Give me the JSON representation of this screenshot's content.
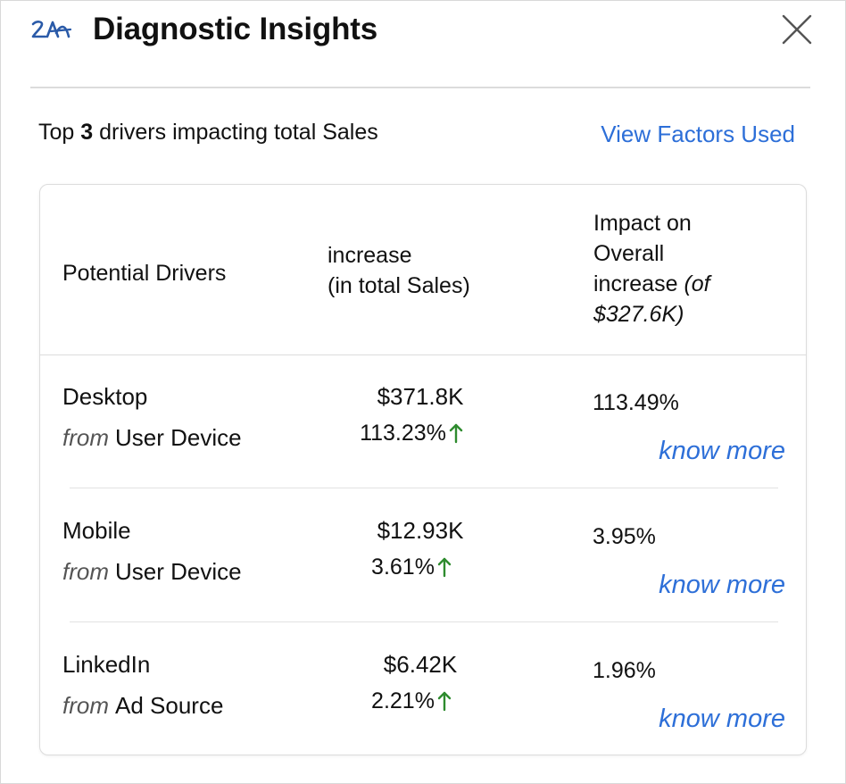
{
  "header": {
    "title": "Diagnostic Insights",
    "logo_icon": "zia-icon",
    "close_icon": "close-icon"
  },
  "summary": {
    "prefix": "Top ",
    "count": "3",
    "suffix": " drivers impacting total Sales",
    "view_factors_label": "View Factors Used"
  },
  "table": {
    "columns": {
      "drivers": "Potential Drivers",
      "increase_line1": "increase",
      "increase_line2": "(in total Sales)",
      "impact_line1": "Impact on",
      "impact_line2": "Overall",
      "impact_line3": "increase",
      "impact_italic1": "(of",
      "impact_italic2": "$327.6K)"
    },
    "rows": [
      {
        "name": "Desktop",
        "from_label": "from",
        "source": "User Device",
        "increase_value": "$371.8K",
        "increase_pct": "113.23%",
        "impact": "113.49%",
        "know_more": "know more"
      },
      {
        "name": "Mobile",
        "from_label": "from",
        "source": "User Device",
        "increase_value": "$12.93K",
        "increase_pct": "3.61%",
        "impact": "3.95%",
        "know_more": "know more"
      },
      {
        "name": "LinkedIn",
        "from_label": "from",
        "source": "Ad Source",
        "increase_value": "$6.42K",
        "increase_pct": "2.21%",
        "impact": "1.96%",
        "know_more": "know more"
      }
    ]
  },
  "colors": {
    "link": "#2d6fd8",
    "up_arrow": "#2e8b2e",
    "logo": "#2a5aa8"
  }
}
